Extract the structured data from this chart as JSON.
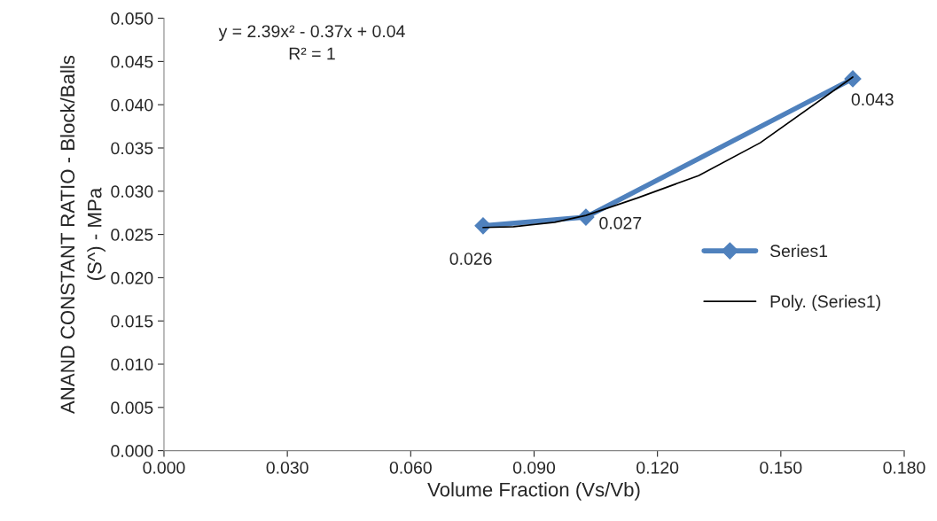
{
  "chart_data": {
    "type": "line",
    "xlabel": "Volume Fraction (Vs/Vb)",
    "ylabel": "ANAND CONSTANT RATIO - Block/Balls\n(S^) - MPa",
    "series": [
      {
        "name": "Series1",
        "color": "#4f81bd",
        "x": [
          0.0776,
          0.1026,
          0.1675
        ],
        "values": [
          0.026,
          0.027,
          0.043
        ],
        "marker": "diamond",
        "data_labels": true
      },
      {
        "name": "Poly. (Series1)",
        "color": "#000000",
        "x": [
          0.0776,
          0.085,
          0.095,
          0.1026,
          0.115,
          0.13,
          0.145,
          0.1675
        ],
        "values": [
          0.0258,
          0.0259,
          0.0264,
          0.0272,
          0.0292,
          0.0318,
          0.0356,
          0.0432
        ],
        "marker": "none"
      }
    ],
    "xlim": [
      0,
      0.18
    ],
    "xticks": [
      {
        "value": 0,
        "label": "0.000"
      },
      {
        "value": 0.03,
        "label": "0.030"
      },
      {
        "value": 0.06,
        "label": "0.060"
      },
      {
        "value": 0.09,
        "label": "0.090"
      },
      {
        "value": 0.12,
        "label": "0.120"
      },
      {
        "value": 0.15,
        "label": "0.150"
      },
      {
        "value": 0.18,
        "label": "0.180"
      }
    ],
    "ylim": [
      0,
      0.05
    ],
    "yticks": [
      {
        "value": 0,
        "label": "0.000"
      },
      {
        "value": 0.005,
        "label": "0.005"
      },
      {
        "value": 0.01,
        "label": "0.010"
      },
      {
        "value": 0.015,
        "label": "0.015"
      },
      {
        "value": 0.02,
        "label": "0.020"
      },
      {
        "value": 0.025,
        "label": "0.025"
      },
      {
        "value": 0.03,
        "label": "0.030"
      },
      {
        "value": 0.035,
        "label": "0.035"
      },
      {
        "value": 0.04,
        "label": "0.040"
      },
      {
        "value": 0.045,
        "label": "0.045"
      },
      {
        "value": 0.05,
        "label": "0.050"
      }
    ],
    "annotations": [
      "y = 2.39x² - 0.37x + 0.04",
      "R² = 1"
    ],
    "grid": false,
    "legend": "right"
  }
}
